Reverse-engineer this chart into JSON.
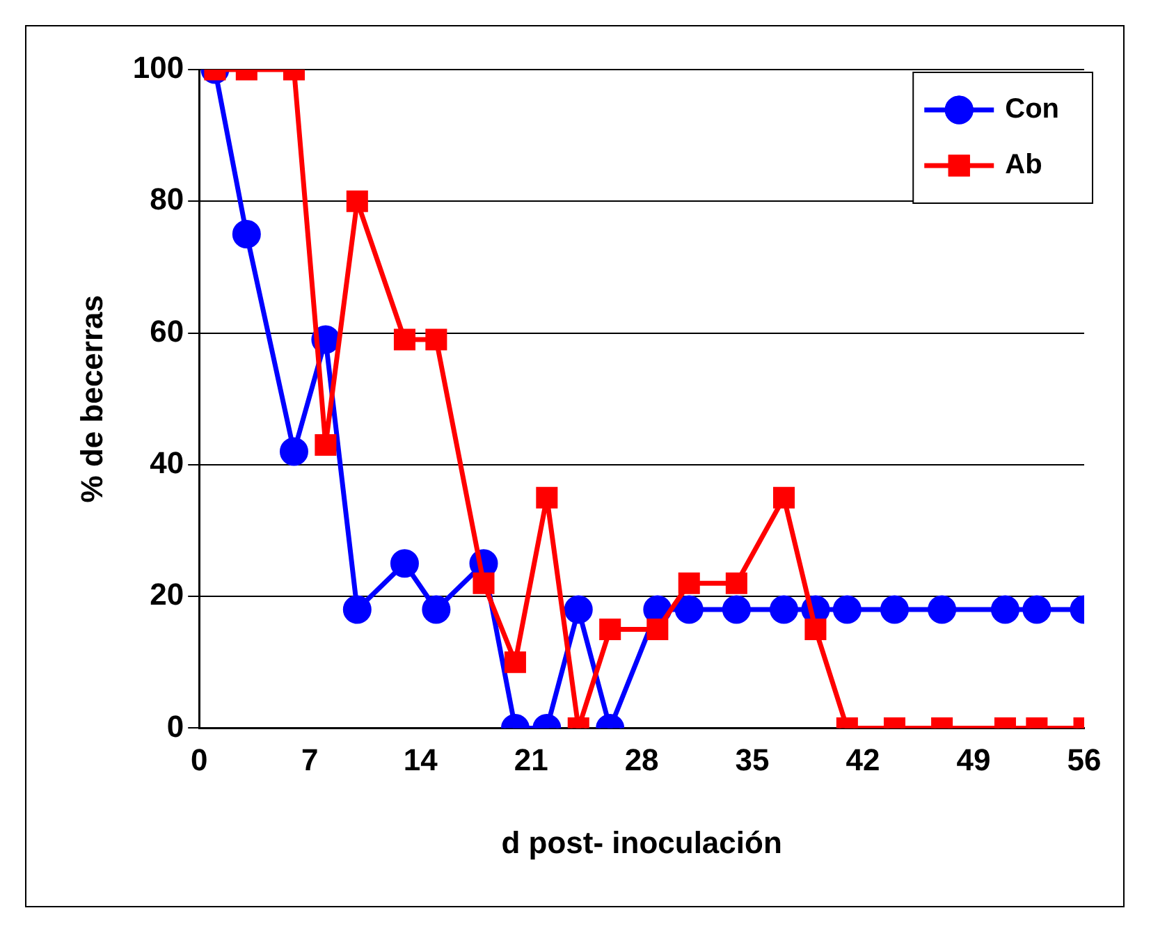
{
  "chart_data": {
    "type": "line",
    "xlabel": "d post- inoculación",
    "ylabel": "% de becerras",
    "xlim": [
      0,
      56
    ],
    "xticks": [
      0,
      7,
      14,
      21,
      28,
      35,
      42,
      49,
      56
    ],
    "ylim": [
      0,
      100
    ],
    "yticks": [
      0,
      20,
      40,
      60,
      80,
      100
    ],
    "grid": "y",
    "legend": "top right",
    "series": [
      {
        "name": "Con",
        "color": "#0000ff",
        "marker": "circle",
        "x": [
          1,
          3,
          6,
          8,
          10,
          13,
          15,
          18,
          20,
          22,
          24,
          26,
          29,
          31,
          34,
          37,
          39,
          41,
          44,
          47,
          51,
          53,
          56
        ],
        "values": [
          100,
          75,
          42,
          59,
          18,
          25,
          18,
          25,
          0,
          0,
          18,
          0,
          18,
          18,
          18,
          18,
          18,
          18,
          18,
          18,
          18,
          18,
          18
        ]
      },
      {
        "name": "Ab",
        "color": "#ff0000",
        "marker": "square",
        "x": [
          1,
          3,
          6,
          8,
          10,
          13,
          15,
          18,
          20,
          22,
          24,
          26,
          29,
          31,
          34,
          37,
          39,
          41,
          44,
          47,
          51,
          53,
          56
        ],
        "values": [
          100,
          100,
          100,
          43,
          80,
          59,
          59,
          22,
          10,
          35,
          0,
          15,
          15,
          22,
          22,
          35,
          15,
          0,
          0,
          0,
          0,
          0,
          0
        ]
      }
    ]
  }
}
